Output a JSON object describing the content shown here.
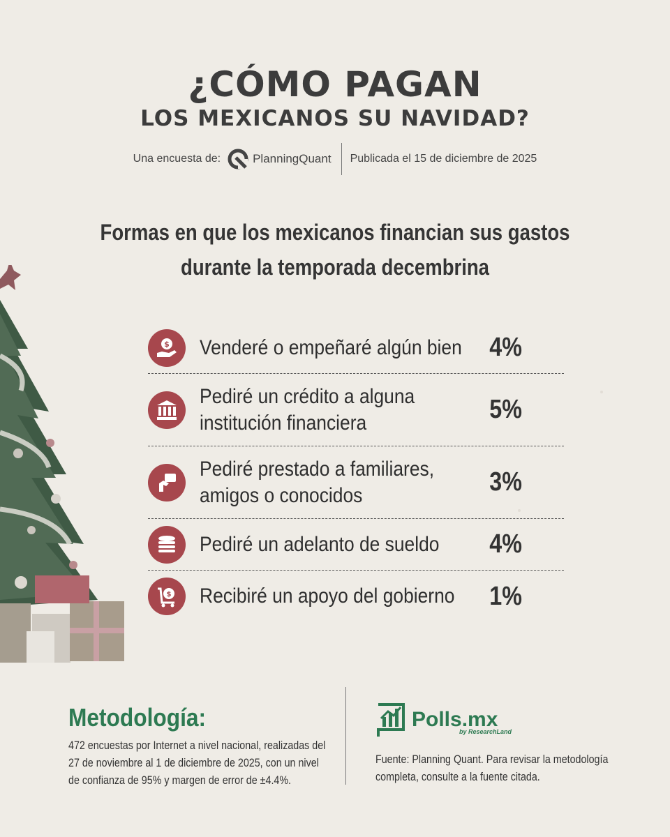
{
  "header": {
    "title_line1": "¿CÓMO PAGAN",
    "title_line2": "LOS MEXICANOS SU NAVIDAD?",
    "survey_label": "Una encuesta de:",
    "pollster_name": "PlanningQuant",
    "published": "Publicada el 15 de diciembre de 2025"
  },
  "subtitle_line1": "Formas en que los mexicanos financian sus gastos",
  "subtitle_line2": "durante la temporada decembrina",
  "items": [
    {
      "icon": "hand-coin-icon",
      "line1": "Venderé o empeñaré algún bien",
      "line2": "",
      "pct": "4%"
    },
    {
      "icon": "bank-icon",
      "line1": "Pediré un crédito a alguna",
      "line2": "institución financiera",
      "pct": "5%"
    },
    {
      "icon": "hand-wallet-icon",
      "line1": "Pediré prestado a familiares,",
      "line2": "amigos o conocidos",
      "pct": "3%"
    },
    {
      "icon": "coin-stack-icon",
      "line1": "Pediré un adelanto de sueldo",
      "line2": "",
      "pct": "4%"
    },
    {
      "icon": "money-bag-cart-icon",
      "line1": "Recibiré un apoyo del gobierno",
      "line2": "",
      "pct": "1%"
    }
  ],
  "methodology": {
    "heading": "Metodología:",
    "text": "472 encuestas por Internet a nivel nacional, realizadas del 27 de noviembre al 1 de diciembre de 2025, con un nivel de confianza de 95% y margen de error de ±4.4%."
  },
  "polls": {
    "brand": "Polls.mx",
    "brand_sub": "by ResearchLand",
    "source": "Fuente: Planning Quant. Para revisar la metodología completa, consulte a la fuente citada."
  },
  "colors": {
    "accent_red": "#a7474d",
    "brand_green": "#2d7a52",
    "background": "#efece6"
  }
}
